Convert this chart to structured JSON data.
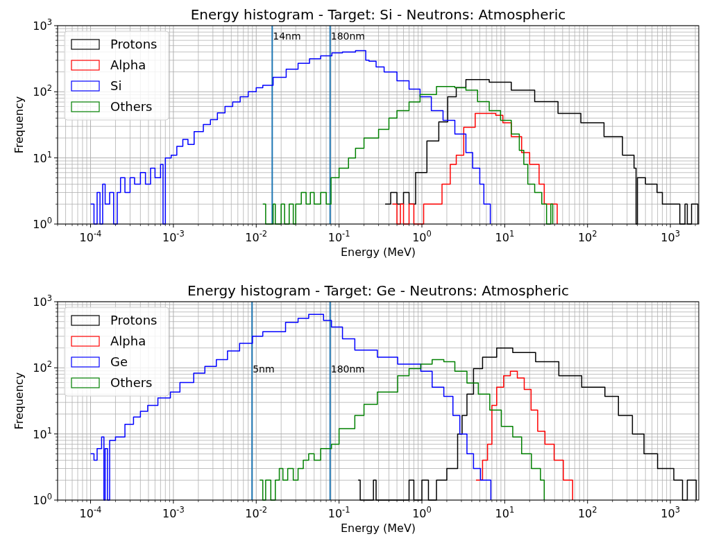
{
  "chart_data": [
    {
      "type": "step",
      "title": "Energy histogram - Target: Si - Neutrons: Atmospheric",
      "xlabel": "Energy (MeV)",
      "ylabel": "Frequency",
      "log": "xy",
      "grid": true,
      "legend": "top left",
      "xlim": [
        4e-05,
        2200
      ],
      "ylim": [
        1,
        1000
      ],
      "xticks": [
        {
          "value": 0.0001,
          "label": "10$^{-4}$"
        },
        {
          "value": 0.001,
          "label": "10$^{-3}$"
        },
        {
          "value": 0.01,
          "label": "10$^{-2}$"
        },
        {
          "value": 0.1,
          "label": "10$^{-1}$"
        },
        {
          "value": 1,
          "label": "10$^{0}$"
        },
        {
          "value": 10,
          "label": "10$^{1}$"
        },
        {
          "value": 100,
          "label": "10$^{2}$"
        },
        {
          "value": 1000,
          "label": "10$^{3}$"
        }
      ],
      "yticks": [
        {
          "value": 1,
          "label": "10$^{0}$"
        },
        {
          "value": 10,
          "label": "10$^{1}$"
        },
        {
          "value": 100,
          "label": "10$^{2}$"
        },
        {
          "value": 1000,
          "label": "10$^{3}$"
        }
      ],
      "ref_lines": [
        {
          "axis": "x",
          "value": 0.0156,
          "label": "14nm",
          "color": "#1f77b4"
        },
        {
          "axis": "x",
          "value": 0.078,
          "label": "180nm",
          "color": "#1f77b4"
        }
      ],
      "series": [
        {
          "name": "Protons",
          "color": "#000000",
          "x": [
            0.36,
            0.42,
            0.5,
            0.6,
            0.7,
            0.84,
            1.15,
            1.6,
            2.05,
            2.6,
            3.4,
            6.5,
            12,
            23,
            44,
            83,
            158,
            264,
            364,
            385,
            400,
            500,
            690,
            800,
            1080,
            1300,
            1500,
            1600,
            1800,
            2000,
            2150
          ],
          "values": [
            2,
            3,
            2,
            3,
            2,
            6,
            18,
            35,
            84,
            116,
            153,
            140,
            106,
            71,
            47,
            34,
            21,
            11,
            7,
            1,
            5,
            4,
            3,
            2,
            2,
            1,
            2,
            1,
            2,
            2,
            1
          ]
        },
        {
          "name": "Alpha",
          "color": "#ff0000",
          "x": [
            0.44,
            0.5,
            0.55,
            0.6,
            0.7,
            0.8,
            1.05,
            1.3,
            1.6,
            1.75,
            2.2,
            2.6,
            3.2,
            4.4,
            5.7,
            7.8,
            9.5,
            12,
            16,
            20,
            26,
            30,
            34,
            40,
            43
          ],
          "values": [
            2,
            1,
            2,
            1,
            2,
            1,
            2,
            2,
            2,
            4,
            8,
            11,
            29,
            47,
            47,
            44,
            34,
            21,
            12,
            8,
            4,
            2,
            2,
            2,
            1
          ]
        },
        {
          "name": "Si",
          "color": "#0000ff",
          "x": [
            0.0001,
            0.00011,
            0.00012,
            0.00013,
            0.00014,
            0.00015,
            0.00017,
            0.00019,
            0.00021,
            0.00023,
            0.00026,
            0.0003,
            0.00034,
            0.0004,
            0.00046,
            0.00053,
            0.0006,
            0.0007,
            0.00075,
            0.0008,
            0.00094,
            0.0011,
            0.0013,
            0.0015,
            0.00178,
            0.0023,
            0.0028,
            0.0034,
            0.0042,
            0.0052,
            0.0064,
            0.008,
            0.01,
            0.012,
            0.016,
            0.023,
            0.032,
            0.044,
            0.06,
            0.082,
            0.11,
            0.158,
            0.19,
            0.21,
            0.23,
            0.28,
            0.35,
            0.5,
            0.7,
            0.95,
            1.3,
            1.8,
            2.5,
            3.4,
            4.1,
            5,
            5.6,
            6.1,
            6.7
          ],
          "values": [
            2,
            1,
            3,
            1,
            4,
            2,
            3,
            1,
            3,
            5,
            3,
            5,
            4,
            6,
            4,
            7,
            5,
            8,
            1,
            10,
            11,
            15,
            19,
            16,
            25,
            32,
            38,
            48,
            60,
            70,
            84,
            100,
            115,
            125,
            165,
            220,
            270,
            316,
            350,
            388,
            400,
            420,
            420,
            300,
            290,
            237,
            200,
            147,
            110,
            84,
            52,
            37,
            23,
            12,
            7,
            4,
            2,
            2,
            1
          ]
        },
        {
          "name": "Others",
          "color": "#008000",
          "x": [
            0.012,
            0.013,
            0.016,
            0.017,
            0.02,
            0.022,
            0.025,
            0.028,
            0.03,
            0.035,
            0.04,
            0.045,
            0.05,
            0.06,
            0.07,
            0.08,
            0.1,
            0.13,
            0.158,
            0.2,
            0.3,
            0.4,
            0.5,
            0.7,
            0.95,
            1.5,
            2.5,
            3.4,
            4.7,
            6.5,
            8.9,
            12,
            15,
            17,
            19,
            23,
            28,
            32,
            36,
            38
          ],
          "values": [
            2,
            1,
            2,
            1,
            2,
            1,
            2,
            1,
            2,
            3,
            2,
            3,
            2,
            3,
            2,
            5,
            7,
            10,
            14,
            20,
            27,
            40,
            52,
            70,
            91,
            120,
            115,
            106,
            71,
            52,
            37,
            23,
            13,
            8,
            4,
            3,
            2,
            1,
            2,
            1
          ]
        }
      ]
    },
    {
      "type": "step",
      "title": "Energy histogram - Target: Ge - Neutrons: Atmospheric",
      "xlabel": "Energy (MeV)",
      "ylabel": "Frequency",
      "log": "xy",
      "grid": true,
      "legend": "top left",
      "xlim": [
        4e-05,
        2200
      ],
      "ylim": [
        1,
        1000
      ],
      "xticks": [
        {
          "value": 0.0001,
          "label": "10$^{-4}$"
        },
        {
          "value": 0.001,
          "label": "10$^{-3}$"
        },
        {
          "value": 0.01,
          "label": "10$^{-2}$"
        },
        {
          "value": 0.1,
          "label": "10$^{-1}$"
        },
        {
          "value": 1,
          "label": "10$^{0}$"
        },
        {
          "value": 10,
          "label": "10$^{1}$"
        },
        {
          "value": 100,
          "label": "10$^{2}$"
        },
        {
          "value": 1000,
          "label": "10$^{3}$"
        }
      ],
      "yticks": [
        {
          "value": 1,
          "label": "10$^{0}$"
        },
        {
          "value": 10,
          "label": "10$^{1}$"
        },
        {
          "value": 100,
          "label": "10$^{2}$"
        },
        {
          "value": 1000,
          "label": "10$^{3}$"
        }
      ],
      "ref_lines": [
        {
          "axis": "x",
          "value": 0.0089,
          "label": "5nm",
          "color": "#1f77b4"
        },
        {
          "axis": "x",
          "value": 0.078,
          "label": "180nm",
          "color": "#1f77b4"
        }
      ],
      "series": [
        {
          "name": "Protons",
          "color": "#000000",
          "x": [
            0.17,
            0.18,
            0.26,
            0.28,
            0.7,
            0.8,
            1,
            1.2,
            1.5,
            2,
            2.7,
            3.06,
            3.5,
            4.2,
            5.4,
            8,
            12.5,
            23.6,
            45,
            85,
            162,
            236,
            348,
            480,
            700,
            1100,
            1400,
            1600,
            1970,
            2050
          ],
          "values": [
            2,
            1,
            2,
            1,
            2,
            1,
            2,
            1,
            2,
            3,
            10,
            19,
            40,
            97,
            145,
            200,
            170,
            124,
            76,
            51,
            37,
            19,
            10,
            5,
            3,
            2,
            1,
            2,
            2,
            1
          ]
        },
        {
          "name": "Alpha",
          "color": "#ff0000",
          "x": [
            4.5,
            5.4,
            6.2,
            7,
            8,
            9.7,
            11.7,
            14.2,
            17.2,
            20.8,
            25,
            30.6,
            39.5,
            51,
            66
          ],
          "values": [
            2,
            4,
            7,
            27,
            51,
            76,
            89,
            70,
            47,
            23,
            11,
            7,
            4,
            2,
            1
          ]
        },
        {
          "name": "Ge",
          "color": "#0000ff",
          "x": [
            0.0001,
            0.00011,
            0.00012,
            0.000136,
            0.000145,
            0.00015,
            0.00016,
            0.00017,
            0.0002,
            0.00026,
            0.00033,
            0.0004,
            0.00049,
            0.00065,
            0.00092,
            0.0012,
            0.00176,
            0.0024,
            0.0033,
            0.0045,
            0.0063,
            0.009,
            0.012,
            0.0226,
            0.032,
            0.043,
            0.052,
            0.065,
            0.081,
            0.11,
            0.155,
            0.29,
            0.51,
            0.97,
            1.33,
            1.84,
            2.37,
            2.87,
            3.5,
            4.2,
            5.1,
            6.8
          ],
          "values": [
            5,
            4,
            6,
            9,
            1,
            6,
            1,
            8,
            9,
            14,
            18,
            22,
            27,
            35,
            43,
            60,
            83,
            105,
            133,
            180,
            235,
            300,
            352,
            486,
            560,
            643,
            643,
            520,
            414,
            275,
            185,
            145,
            114,
            89,
            51,
            37,
            19,
            10,
            5,
            3,
            2,
            1
          ]
        },
        {
          "name": "Others",
          "color": "#008000",
          "x": [
            0.011,
            0.012,
            0.013,
            0.015,
            0.017,
            0.019,
            0.021,
            0.024,
            0.028,
            0.032,
            0.037,
            0.043,
            0.05,
            0.06,
            0.081,
            0.1,
            0.155,
            0.2,
            0.29,
            0.51,
            0.7,
            0.97,
            1.33,
            1.84,
            2.5,
            3.5,
            4.8,
            6.6,
            9.1,
            12.5,
            16,
            21,
            27,
            30
          ],
          "values": [
            2,
            1,
            2,
            1,
            2,
            3,
            2,
            3,
            2,
            3,
            4,
            5,
            4,
            6,
            7,
            12,
            19,
            28,
            43,
            76,
            97,
            114,
            133,
            124,
            89,
            59,
            40,
            23,
            13,
            9,
            5,
            3,
            2,
            1
          ]
        }
      ]
    }
  ]
}
